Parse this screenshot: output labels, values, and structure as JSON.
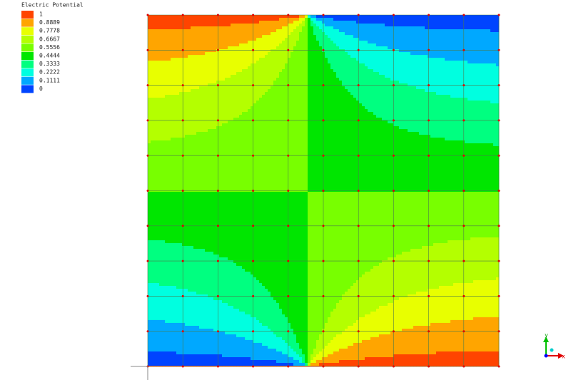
{
  "legend": {
    "title": "Electric Potential",
    "entries": [
      {
        "label": "1",
        "color": "#ff4400"
      },
      {
        "label": "0.8889",
        "color": "#ffa500"
      },
      {
        "label": "0.7778",
        "color": "#e8ff00"
      },
      {
        "label": "0.6667",
        "color": "#b4ff00"
      },
      {
        "label": "0.5556",
        "color": "#78ff00"
      },
      {
        "label": "0.4444",
        "color": "#00e600"
      },
      {
        "label": "0.3333",
        "color": "#00ff80"
      },
      {
        "label": "0.2222",
        "color": "#00ffe0"
      },
      {
        "label": "0.1111",
        "color": "#00a8ff"
      },
      {
        "label": "0",
        "color": "#0044ff"
      }
    ]
  },
  "triad": {
    "y": "y",
    "x": "x"
  }
}
